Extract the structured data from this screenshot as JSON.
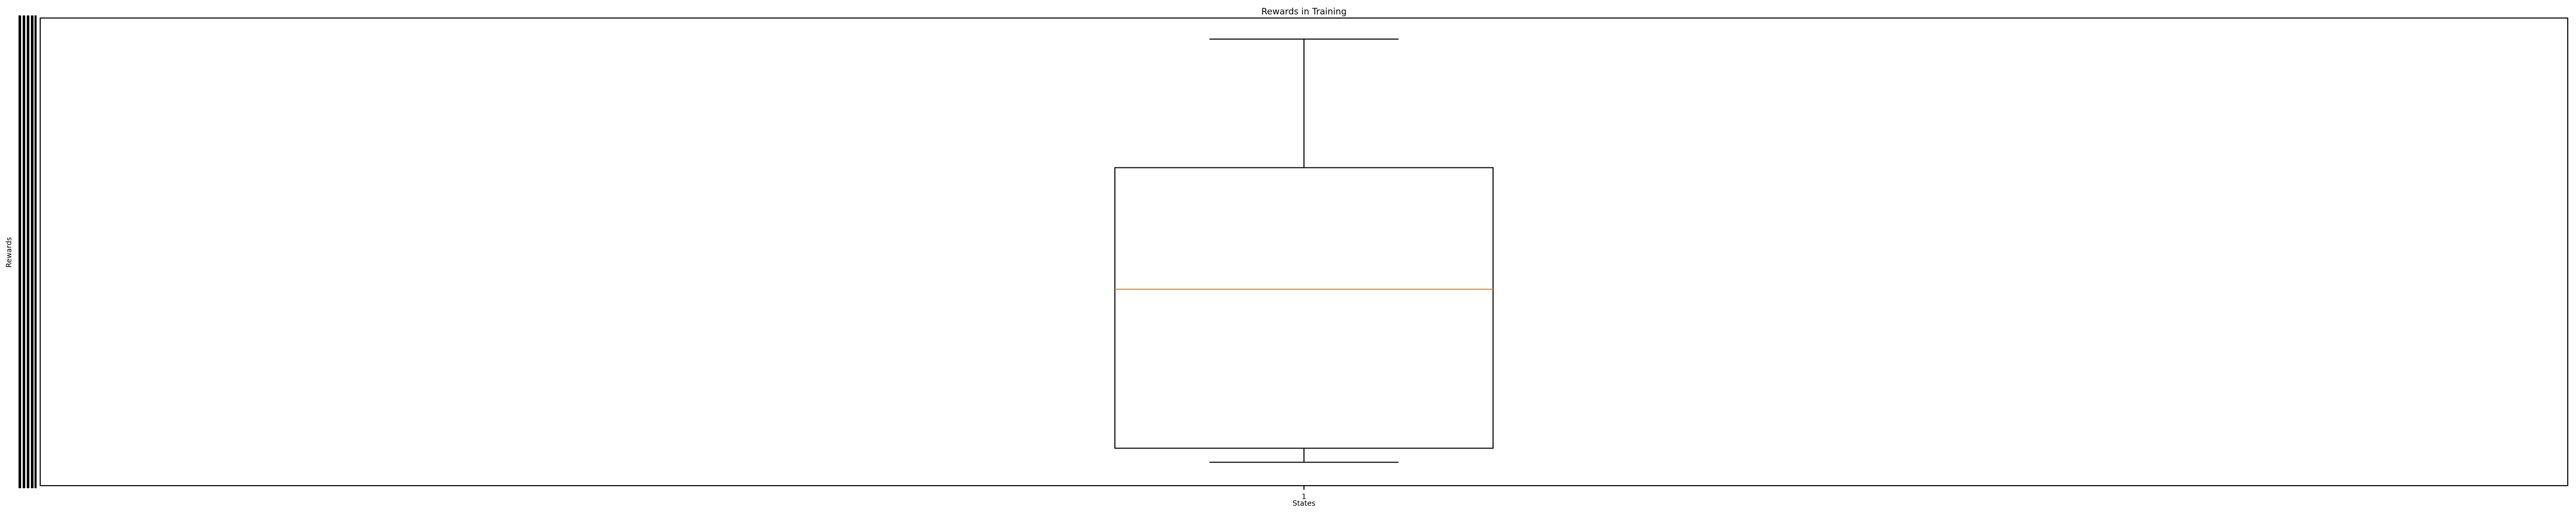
{
  "chart_data": {
    "type": "box",
    "title": "Rewards in Training",
    "xlabel": "States",
    "ylabel": "Rewards",
    "categories": [
      "1"
    ],
    "series": [
      {
        "values": [
          {
            "whisker_low": 0.05,
            "q1": 0.08,
            "median": 0.42,
            "q3": 0.68,
            "whisker_high": 0.955
          }
        ]
      }
    ],
    "ylim": [
      0,
      1
    ],
    "ytick_labels_note": "y tick labels are densely overprinted and illegible",
    "grid": false,
    "median_color": "#ff7f0e",
    "box_color": "#000000"
  }
}
